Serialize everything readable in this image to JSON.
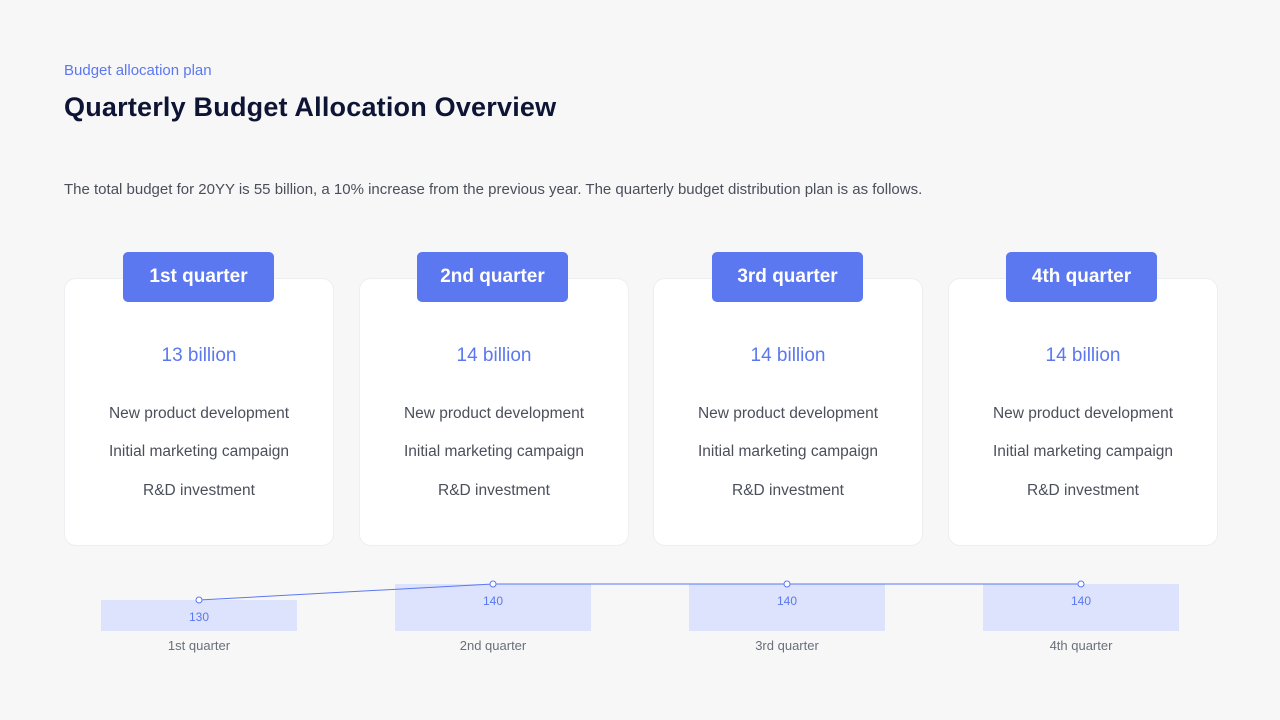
{
  "header": {
    "subtitle": "Budget allocation plan",
    "title": "Quarterly Budget Allocation Overview",
    "description": "The total budget for 20YY is 55 billion, a 10% increase from the previous year. The quarterly budget distribution plan is as follows."
  },
  "quarters": [
    {
      "label": "1st quarter",
      "amount": "13 billion",
      "items": [
        "New product development",
        "Initial marketing campaign",
        "R&D investment"
      ]
    },
    {
      "label": "2nd quarter",
      "amount": "14 billion",
      "items": [
        "New product development",
        "Initial marketing campaign",
        "R&D investment"
      ]
    },
    {
      "label": "3rd quarter",
      "amount": "14 billion",
      "items": [
        "New product development",
        "Initial marketing campaign",
        "R&D investment"
      ]
    },
    {
      "label": "4th quarter",
      "amount": "14 billion",
      "items": [
        "New product development",
        "Initial marketing campaign",
        "R&D investment"
      ]
    }
  ],
  "colors": {
    "accent": "#5b78f0",
    "bar_fill": "#dde3fc",
    "title": "#0e1433"
  },
  "chart_data": {
    "type": "bar",
    "categories": [
      "1st quarter",
      "2nd quarter",
      "3rd quarter",
      "4th quarter"
    ],
    "values": [
      130,
      140,
      140,
      140
    ],
    "overlay": "line",
    "title": "",
    "xlabel": "",
    "ylabel": ""
  }
}
